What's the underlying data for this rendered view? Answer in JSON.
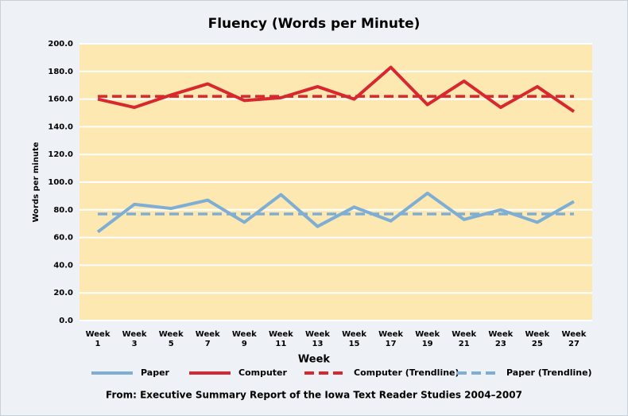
{
  "chart_data": {
    "type": "line",
    "title": "Fluency (Words per Minute)",
    "x_label": "Week",
    "y_label": "Words per minute",
    "source": "From: Executive Summary Report of the Iowa Text Reader Studies 2004–2007",
    "categories": [
      "Week 1",
      "Week 3",
      "Week 5",
      "Week 7",
      "Week 9",
      "Week 11",
      "Week 13",
      "Week 15",
      "Week 17",
      "Week 19",
      "Week 21",
      "Week 23",
      "Week 25",
      "Week 27"
    ],
    "series": [
      {
        "name": "Paper",
        "color": "#7eaed3",
        "dashed": false,
        "values": [
          64,
          84,
          81,
          87,
          71,
          91,
          68,
          82,
          72,
          92,
          73,
          80,
          71,
          86
        ]
      },
      {
        "name": "Computer",
        "color": "#d7282f",
        "dashed": false,
        "values": [
          160,
          154,
          163,
          171,
          159,
          161,
          169,
          160,
          183,
          156,
          173,
          154,
          169,
          151
        ]
      },
      {
        "name": "Computer (Trendline)",
        "color": "#d7282f",
        "dashed": true,
        "values": [
          162,
          162,
          162,
          162,
          162,
          162,
          162,
          162,
          162,
          162,
          162,
          162,
          162,
          162
        ]
      },
      {
        "name": "Paper (Trendline)",
        "color": "#7eaed3",
        "dashed": true,
        "values": [
          77,
          77,
          77,
          77,
          77,
          77,
          77,
          77,
          77,
          77,
          77,
          77,
          77,
          77
        ]
      }
    ],
    "ylim": [
      0,
      200
    ],
    "yticks": [
      {
        "value": 0,
        "label": "0.0"
      },
      {
        "value": 20,
        "label": "20.0"
      },
      {
        "value": 40,
        "label": "40.0"
      },
      {
        "value": 60,
        "label": "60.0"
      },
      {
        "value": 80,
        "label": "80.0"
      },
      {
        "value": 100,
        "label": "100.0"
      },
      {
        "value": 120,
        "label": "120.0"
      },
      {
        "value": 140,
        "label": "140.0"
      },
      {
        "value": 160,
        "label": "160.0"
      },
      {
        "value": 180,
        "label": "180.0"
      },
      {
        "value": 200,
        "label": "200.0"
      }
    ],
    "grid": true,
    "background": "#fde8b2"
  }
}
